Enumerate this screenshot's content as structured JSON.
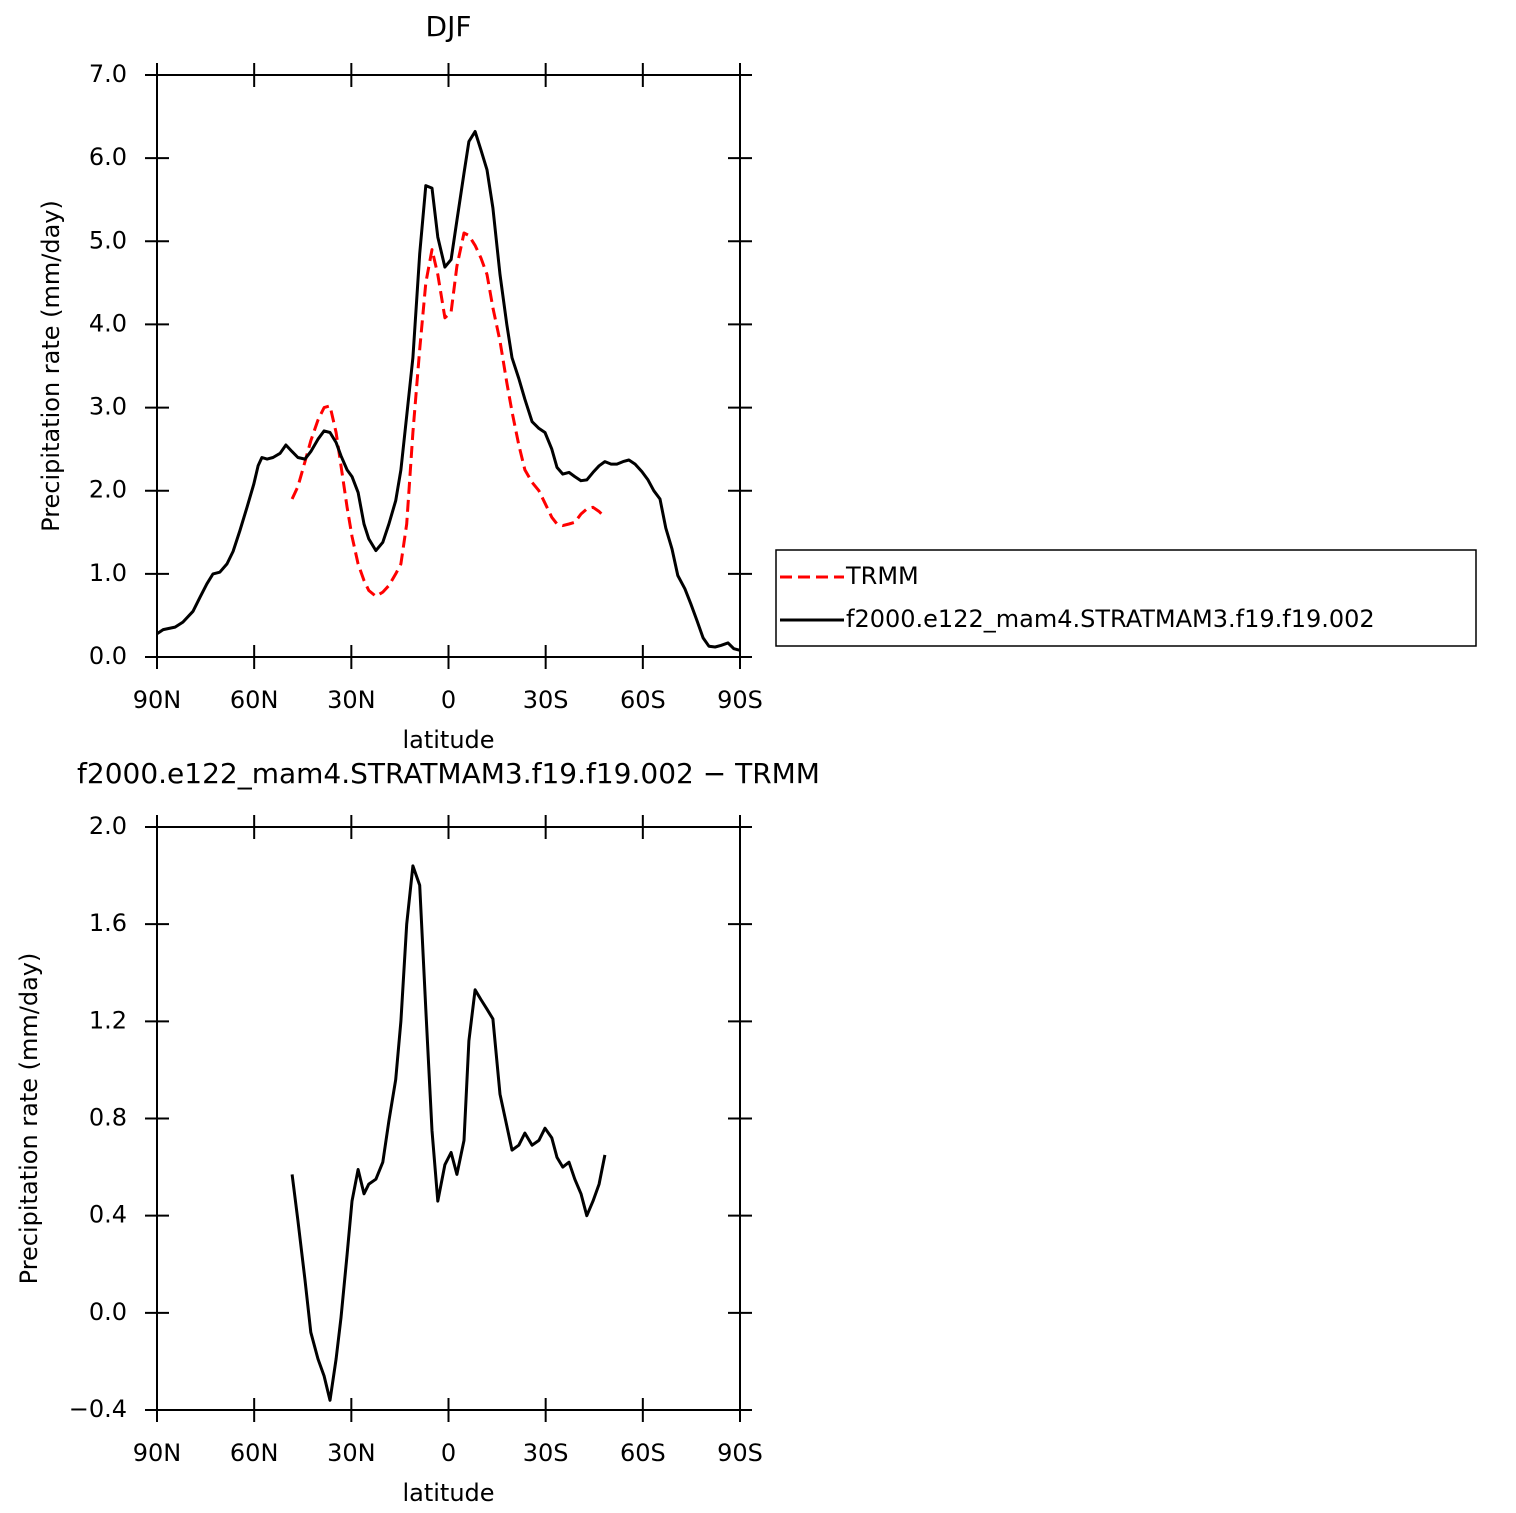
{
  "chart_data": [
    {
      "type": "line",
      "title": "DJF",
      "xlabel": "latitude",
      "ylabel": "Precipitation rate (mm/day)",
      "xlim": [
        90,
        -90
      ],
      "xticks": [
        {
          "value": 90,
          "label": "90N"
        },
        {
          "value": 60,
          "label": "60N"
        },
        {
          "value": 30,
          "label": "30N"
        },
        0,
        {
          "value": -30,
          "label": "30S"
        },
        {
          "value": -60,
          "label": "60S"
        },
        {
          "value": -90,
          "label": "90S"
        }
      ],
      "ylim": [
        0,
        7
      ],
      "yticks": [
        {
          "value": 0,
          "label": "0.0"
        },
        {
          "value": 1,
          "label": "1.0"
        },
        {
          "value": 2,
          "label": "2.0"
        },
        {
          "value": 3,
          "label": "3.0"
        },
        {
          "value": 4,
          "label": "4.0"
        },
        {
          "value": 5,
          "label": "5.0"
        },
        {
          "value": 6,
          "label": "6.0"
        },
        {
          "value": 7,
          "label": "7.0"
        }
      ],
      "legend": "right",
      "series": [
        {
          "name": "TRMM",
          "color": "#ff0000",
          "style": "dashed",
          "x": [
            48.3,
            46.5,
            44.3,
            42.5,
            40.3,
            38.4,
            36.6,
            34.7,
            33.2,
            31.3,
            29.8,
            27.9,
            26.1,
            24.6,
            22.4,
            20.3,
            18.4,
            16.3,
            14.7,
            12.9,
            11,
            8.9,
            7,
            5.1,
            3.3,
            1.1,
            -0.8,
            -2.6,
            -4.8,
            -6.3,
            -8.2,
            -10,
            -11.9,
            -13.7,
            -15.9,
            -18,
            -19.6,
            -21.7,
            -23.6,
            -25.8,
            -27.9,
            -29.8,
            -31.9,
            -33.5,
            -35.3,
            -37.2,
            -39,
            -40.9,
            -42.7,
            -44.6,
            -46.5,
            -48.3
          ],
          "values": [
            1.9,
            2.05,
            2.35,
            2.6,
            2.85,
            3.0,
            3.02,
            2.7,
            2.3,
            1.8,
            1.45,
            1.12,
            0.92,
            0.8,
            0.73,
            0.78,
            0.86,
            1.0,
            1.12,
            1.6,
            2.7,
            3.7,
            4.5,
            4.9,
            4.6,
            4.08,
            4.15,
            4.7,
            5.1,
            5.07,
            4.95,
            4.8,
            4.6,
            4.2,
            3.8,
            3.3,
            2.95,
            2.55,
            2.25,
            2.1,
            2.0,
            1.85,
            1.68,
            1.6,
            1.58,
            1.6,
            1.62,
            1.72,
            1.78,
            1.8,
            1.75,
            1.68
          ]
        },
        {
          "name": "f2000.e122_mam4.STRATMAM3.f19.f19.002",
          "color": "#000000",
          "style": "solid",
          "x": [
            90,
            88.1,
            84.4,
            82,
            78.9,
            76.7,
            74.6,
            72.7,
            70.6,
            68.4,
            66.5,
            64.4,
            62.2,
            60.1,
            58.8,
            57.6,
            56,
            54.2,
            52,
            50.2,
            48.3,
            46.5,
            44.3,
            42.5,
            40.3,
            38.4,
            36.6,
            34.7,
            33.2,
            31.3,
            29.8,
            27.9,
            26.1,
            24.6,
            22.4,
            20.3,
            18.4,
            16.3,
            14.7,
            12.9,
            11,
            8.9,
            7,
            5.1,
            3.3,
            1.1,
            -0.8,
            -2.6,
            -4.8,
            -6.3,
            -8.2,
            -10,
            -11.9,
            -13.7,
            -15.9,
            -18,
            -19.6,
            -21.7,
            -23.6,
            -25.8,
            -27.9,
            -29.8,
            -31.9,
            -33.5,
            -35.3,
            -37.2,
            -39,
            -40.9,
            -42.7,
            -44.6,
            -46.5,
            -48.3,
            -50.2,
            -52,
            -53.9,
            -55.7,
            -57.6,
            -59.7,
            -61.6,
            -63.4,
            -65.3,
            -67.1,
            -69,
            -70.8,
            -73,
            -74.8,
            -76.7,
            -78.6,
            -80.4,
            -82.3,
            -84.1,
            -86.3,
            -88.1,
            -90
          ],
          "values": [
            0.28,
            0.33,
            0.36,
            0.42,
            0.55,
            0.72,
            0.88,
            1.0,
            1.02,
            1.12,
            1.27,
            1.52,
            1.8,
            2.08,
            2.3,
            2.4,
            2.38,
            2.4,
            2.45,
            2.55,
            2.47,
            2.4,
            2.38,
            2.47,
            2.62,
            2.72,
            2.7,
            2.58,
            2.42,
            2.25,
            2.17,
            1.98,
            1.6,
            1.42,
            1.28,
            1.38,
            1.6,
            1.88,
            2.25,
            2.9,
            3.6,
            4.85,
            5.67,
            5.64,
            5.05,
            4.69,
            4.78,
            5.25,
            5.82,
            6.2,
            6.32,
            6.1,
            5.86,
            5.4,
            4.6,
            4.0,
            3.6,
            3.35,
            3.1,
            2.83,
            2.75,
            2.7,
            2.5,
            2.28,
            2.2,
            2.22,
            2.17,
            2.12,
            2.13,
            2.22,
            2.3,
            2.35,
            2.32,
            2.32,
            2.35,
            2.37,
            2.32,
            2.23,
            2.13,
            2.0,
            1.9,
            1.55,
            1.3,
            0.98,
            0.82,
            0.64,
            0.44,
            0.23,
            0.13,
            0.12,
            0.14,
            0.17,
            0.1,
            0.08
          ]
        }
      ]
    },
    {
      "type": "line",
      "title": "f2000.e122_mam4.STRATMAM3.f19.f19.002 − TRMM",
      "xlabel": "latitude",
      "ylabel": "Precipitation rate (mm/day)",
      "xlim": [
        90,
        -90
      ],
      "xticks": [
        {
          "value": 90,
          "label": "90N"
        },
        {
          "value": 60,
          "label": "60N"
        },
        {
          "value": 30,
          "label": "30N"
        },
        0,
        {
          "value": -30,
          "label": "30S"
        },
        {
          "value": -60,
          "label": "60S"
        },
        {
          "value": -90,
          "label": "90S"
        }
      ],
      "ylim": [
        -0.4,
        2.0
      ],
      "yticks": [
        {
          "value": -0.4,
          "label": "−0.4"
        },
        {
          "value": 0,
          "label": "0.0"
        },
        0.4,
        0.8,
        1.2,
        1.6,
        {
          "value": 2,
          "label": "2.0"
        }
      ],
      "series": [
        {
          "color": "#000000",
          "style": "solid",
          "x": [
            48.3,
            46.5,
            44.3,
            42.5,
            40.3,
            38.4,
            36.6,
            34.7,
            33.2,
            31.3,
            29.8,
            27.9,
            26.1,
            24.6,
            22.4,
            20.3,
            18.4,
            16.3,
            14.7,
            12.9,
            11,
            8.9,
            7,
            5.1,
            3.3,
            1.1,
            -0.8,
            -2.6,
            -4.8,
            -6.3,
            -8.2,
            -10,
            -11.9,
            -13.7,
            -15.9,
            -18,
            -19.6,
            -21.7,
            -23.6,
            -25.8,
            -27.9,
            -29.8,
            -31.9,
            -33.5,
            -35.3,
            -37.2,
            -39,
            -40.9,
            -42.7,
            -44.6,
            -46.5,
            -48.3
          ],
          "values": [
            0.57,
            0.38,
            0.135,
            -0.08,
            -0.19,
            -0.26,
            -0.36,
            -0.19,
            -0.02,
            0.24,
            0.46,
            0.59,
            0.49,
            0.53,
            0.55,
            0.62,
            0.79,
            0.96,
            1.2,
            1.6,
            1.84,
            1.76,
            1.25,
            0.75,
            0.46,
            0.61,
            0.66,
            0.57,
            0.71,
            1.12,
            1.33,
            1.29,
            1.25,
            1.21,
            0.9,
            0.77,
            0.67,
            0.69,
            0.74,
            0.69,
            0.71,
            0.76,
            0.72,
            0.64,
            0.6,
            0.62,
            0.55,
            0.49,
            0.4,
            0.46,
            0.53,
            0.65
          ]
        }
      ]
    }
  ]
}
